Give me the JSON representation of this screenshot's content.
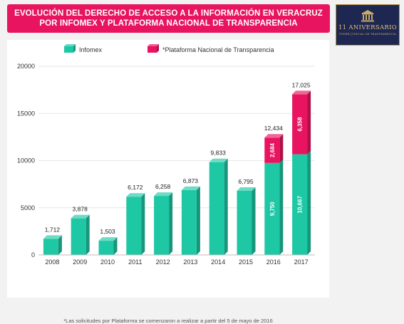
{
  "header": {
    "title_line1": "EVOLUCIÓN DEL DERECHO DE ACCESO A LA INFORMACIÓN EN VERACRUZ",
    "title_line2": "POR INFOMEX Y PLATAFORMA NACIONAL DE TRANSPARENCIA"
  },
  "logo": {
    "text": "11 ANIVERSARIO",
    "subtext": "PODER JUDICIAL DE TRANSPARENCIA",
    "color_bg": "#1d2752",
    "color_gold": "#c9ab66"
  },
  "chart_data": {
    "type": "bar",
    "stacked": true,
    "categories": [
      "2008",
      "2009",
      "2010",
      "2011",
      "2012",
      "2013",
      "2014",
      "2015",
      "2016",
      "2017"
    ],
    "series": [
      {
        "name": "Infomex",
        "color": "#1ec8a5",
        "values": [
          1712,
          3878,
          1503,
          6172,
          6258,
          6873,
          9833,
          6795,
          9750,
          10667
        ],
        "segment_labels": [
          "",
          "",
          "",
          "",
          "",
          "",
          "",
          "",
          "9,750",
          "10,667"
        ]
      },
      {
        "name": "*Plataforma Nacional de Transparencia",
        "color": "#e8145f",
        "values": [
          0,
          0,
          0,
          0,
          0,
          0,
          0,
          0,
          2684,
          6358
        ],
        "segment_labels": [
          "",
          "",
          "",
          "",
          "",
          "",
          "",
          "",
          "2,684",
          "6,358"
        ]
      }
    ],
    "total_labels": [
      "1,712",
      "3,878",
      "1,503",
      "6,172",
      "6,258",
      "6,873",
      "9,833",
      "6,795",
      "12,434",
      "17,025"
    ],
    "y_ticks": [
      "0",
      "5000",
      "10000",
      "15000",
      "20000"
    ],
    "ylim": [
      0,
      20000
    ],
    "grid": true,
    "legend_position": "top",
    "footnote": "*Las solicitudes por Plataforma se comenzaron a realizar a partir del 5 de mayo de 2016"
  }
}
